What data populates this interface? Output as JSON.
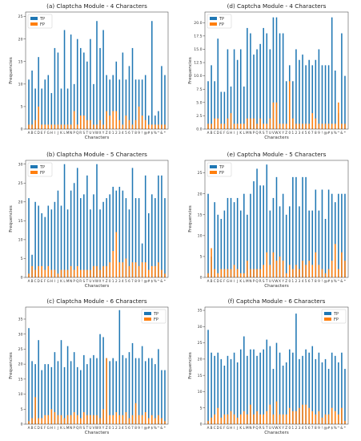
{
  "colors": {
    "tp": "#1f77b4",
    "fp": "#ff7f0e"
  },
  "chart_data": [
    {
      "type": "bar",
      "title": "(a)  Claptcha Module - 4 Characters",
      "xlabel": "Characters",
      "ylabel": "Frequencies",
      "ylim": [
        0,
        26
      ],
      "yticks": [
        0,
        5,
        10,
        15,
        20,
        25
      ],
      "legend": "top-left",
      "categories": [
        "A",
        "B",
        "C",
        "D",
        "E",
        "F",
        "G",
        "H",
        "I",
        "J",
        "K",
        "L",
        "M",
        "N",
        "P",
        "Q",
        "R",
        "S",
        "T",
        "U",
        "V",
        "W",
        "X",
        "Y",
        "Z",
        "0",
        "1",
        "2",
        "3",
        "4",
        "5",
        "6",
        "7",
        "8",
        "9",
        "!",
        "@",
        "#",
        "$",
        "%",
        "^",
        "&",
        "*"
      ],
      "series": [
        {
          "name": "TP",
          "values": [
            11,
            13,
            9,
            16,
            9,
            11,
            12,
            8,
            18,
            17,
            9,
            22,
            9,
            21,
            10,
            20,
            18,
            17,
            15,
            20,
            10,
            24,
            18,
            22,
            12,
            11,
            12,
            15,
            11,
            17,
            11,
            14,
            18,
            11,
            11,
            11,
            12,
            3,
            24,
            3,
            4,
            14,
            12
          ]
        },
        {
          "name": "FP",
          "values": [
            1,
            1,
            2,
            5,
            1,
            1,
            1,
            1,
            1,
            1,
            1,
            1,
            1,
            1,
            4,
            1,
            3,
            3,
            2,
            2,
            1,
            1,
            2,
            1,
            4,
            3,
            4,
            4,
            2,
            1,
            3,
            2,
            1,
            2,
            5,
            3,
            2,
            1,
            1,
            1,
            1,
            1,
            1
          ]
        }
      ]
    },
    {
      "type": "bar",
      "title": "(d)  Captcha Module - 4 Characters",
      "xlabel": "Characters",
      "ylabel": "Frequencies",
      "ylim": [
        0,
        22
      ],
      "yticks": [
        0.0,
        2.5,
        5.0,
        7.5,
        10.0,
        12.5,
        15.0,
        17.5,
        20.0
      ],
      "legend": "top-left",
      "categories": [
        "A",
        "B",
        "C",
        "D",
        "E",
        "F",
        "G",
        "H",
        "I",
        "J",
        "K",
        "L",
        "M",
        "N",
        "P",
        "Q",
        "R",
        "S",
        "T",
        "U",
        "V",
        "W",
        "X",
        "Y",
        "Z",
        "0",
        "1",
        "2",
        "3",
        "4",
        "5",
        "6",
        "7",
        "8",
        "9",
        "!",
        "@",
        "#",
        "$",
        "%",
        "^",
        "&",
        "*"
      ],
      "series": [
        {
          "name": "TP",
          "values": [
            9,
            12,
            9,
            17,
            7,
            7,
            15,
            8,
            15,
            13,
            15,
            8,
            19,
            18,
            14,
            15,
            16,
            19,
            18,
            15,
            21,
            21,
            18,
            18,
            9,
            12,
            9,
            15,
            13,
            14,
            12,
            13,
            12,
            13,
            15,
            12,
            12,
            12,
            21,
            11,
            3,
            18,
            10
          ]
        },
        {
          "name": "FP",
          "values": [
            1,
            1,
            2,
            2,
            1,
            1,
            2,
            3,
            1,
            1,
            1,
            1,
            2,
            2,
            2,
            1,
            2,
            1,
            1,
            2,
            5,
            5,
            1,
            1,
            1,
            9,
            2,
            1,
            1,
            1,
            1,
            1,
            3,
            2,
            1,
            1,
            1,
            1,
            1,
            1,
            5,
            1,
            1
          ]
        }
      ]
    },
    {
      "type": "bar",
      "title": "(b)  Claptcha Module - 5 Characters",
      "xlabel": "Characters",
      "ylabel": "Frequencies",
      "ylim": [
        0,
        31
      ],
      "yticks": [
        0,
        5,
        10,
        15,
        20,
        25,
        30
      ],
      "legend": "top-left",
      "categories": [
        "A",
        "B",
        "C",
        "D",
        "E",
        "F",
        "G",
        "H",
        "I",
        "J",
        "K",
        "L",
        "M",
        "N",
        "P",
        "Q",
        "R",
        "S",
        "T",
        "U",
        "V",
        "W",
        "X",
        "Y",
        "Z",
        "0",
        "1",
        "2",
        "3",
        "4",
        "5",
        "6",
        "7",
        "8",
        "9",
        "!",
        "@",
        "#",
        "$",
        "%",
        "^",
        "&",
        "*"
      ],
      "series": [
        {
          "name": "TP",
          "values": [
            21,
            6,
            20,
            19,
            17,
            16,
            19,
            18,
            20,
            23,
            19,
            30,
            18,
            23,
            25,
            29,
            21,
            22,
            27,
            18,
            22,
            30,
            18,
            20,
            21,
            22,
            24,
            23,
            24,
            23,
            21,
            18,
            29,
            21,
            21,
            9,
            27,
            17,
            22,
            21,
            27,
            27,
            21
          ]
        },
        {
          "name": "FP",
          "values": [
            1,
            3,
            2,
            3,
            3,
            2,
            3,
            2,
            2,
            1,
            2,
            2,
            2,
            3,
            2,
            3,
            2,
            2,
            2,
            2,
            3,
            3,
            2,
            3,
            3,
            4,
            7,
            12,
            4,
            4,
            5,
            3,
            4,
            4,
            3,
            4,
            4,
            2,
            3,
            3,
            4,
            2,
            1
          ]
        }
      ]
    },
    {
      "type": "bar",
      "title": "(e)  Captcha Module - 5 Characters",
      "xlabel": "Characters",
      "ylabel": "Frequencies",
      "ylim": [
        0,
        28
      ],
      "yticks": [
        0,
        5,
        10,
        15,
        20,
        25
      ],
      "legend": "top-left",
      "categories": [
        "A",
        "B",
        "C",
        "D",
        "E",
        "F",
        "G",
        "H",
        "I",
        "J",
        "K",
        "L",
        "M",
        "N",
        "P",
        "Q",
        "R",
        "S",
        "T",
        "U",
        "V",
        "W",
        "X",
        "Y",
        "Z",
        "0",
        "1",
        "2",
        "3",
        "4",
        "5",
        "6",
        "7",
        "8",
        "9",
        "!",
        "@",
        "#",
        "$",
        "%",
        "^",
        "&",
        "*"
      ],
      "series": [
        {
          "name": "TP",
          "values": [
            20,
            5,
            18,
            15,
            14,
            16,
            19,
            19,
            18,
            19,
            16,
            20,
            15,
            20,
            23,
            26,
            22,
            22,
            27,
            16,
            19,
            24,
            17,
            20,
            15,
            17,
            24,
            24,
            17,
            24,
            24,
            16,
            16,
            21,
            16,
            21,
            14,
            21,
            20,
            18,
            20,
            20,
            20
          ]
        },
        {
          "name": "FP",
          "values": [
            1,
            7,
            2,
            1,
            2,
            2,
            2,
            2,
            3,
            2,
            1,
            1,
            4,
            2,
            2,
            2,
            2,
            3,
            6,
            3,
            6,
            4,
            5,
            4,
            1,
            3,
            2,
            3,
            2,
            4,
            3,
            4,
            3,
            6,
            3,
            2,
            1,
            2,
            4,
            8,
            2,
            6,
            4
          ]
        }
      ]
    },
    {
      "type": "bar",
      "title": "(c)  Claptcha Module - 6 Characters",
      "xlabel": "Characters",
      "ylabel": "Frequencies",
      "ylim": [
        0,
        39
      ],
      "yticks": [
        0,
        5,
        10,
        15,
        20,
        25,
        30,
        35
      ],
      "legend": "top-right",
      "categories": [
        "A",
        "B",
        "C",
        "D",
        "E",
        "F",
        "G",
        "H",
        "I",
        "J",
        "K",
        "L",
        "M",
        "N",
        "P",
        "Q",
        "R",
        "S",
        "T",
        "U",
        "V",
        "W",
        "X",
        "Y",
        "Z",
        "0",
        "1",
        "2",
        "3",
        "4",
        "5",
        "6",
        "7",
        "8",
        "9",
        "!",
        "@",
        "#",
        "$",
        "%",
        "^",
        "&",
        "*"
      ],
      "series": [
        {
          "name": "TP",
          "values": [
            32,
            21,
            20,
            28,
            18,
            20,
            20,
            19,
            24,
            21,
            28,
            19,
            26,
            21,
            24,
            19,
            18,
            23,
            20,
            22,
            23,
            22,
            30,
            29,
            22,
            21,
            22,
            21,
            38,
            23,
            22,
            24,
            27,
            22,
            22,
            26,
            21,
            22,
            22,
            20,
            25,
            18,
            18
          ]
        },
        {
          "name": "FP",
          "values": [
            1,
            2,
            9,
            2,
            2,
            3,
            3,
            5,
            4,
            3,
            3,
            2,
            3,
            3,
            4,
            3,
            2,
            4,
            3,
            3,
            3,
            3,
            2,
            5,
            22,
            3,
            3,
            4,
            3,
            3,
            4,
            2,
            3,
            7,
            3,
            3,
            4,
            2,
            3,
            2,
            3,
            2,
            1
          ]
        }
      ]
    },
    {
      "type": "bar",
      "title": "(f)  Captcha Module - 6 Characters",
      "xlabel": "Characters",
      "ylabel": "Frequencies",
      "ylim": [
        0,
        36
      ],
      "yticks": [
        0,
        5,
        10,
        15,
        20,
        25,
        30,
        35
      ],
      "legend": "top-right",
      "categories": [
        "A",
        "B",
        "C",
        "D",
        "E",
        "F",
        "G",
        "H",
        "I",
        "J",
        "K",
        "L",
        "M",
        "N",
        "P",
        "Q",
        "R",
        "S",
        "T",
        "U",
        "V",
        "W",
        "X",
        "Y",
        "Z",
        "0",
        "1",
        "2",
        "3",
        "4",
        "5",
        "6",
        "7",
        "8",
        "9",
        "!",
        "@",
        "#",
        "$",
        "%",
        "^",
        "&",
        "*"
      ],
      "series": [
        {
          "name": "TP",
          "values": [
            29,
            22,
            21,
            22,
            20,
            18,
            21,
            20,
            22,
            19,
            23,
            27,
            21,
            23,
            23,
            21,
            22,
            23,
            26,
            24,
            17,
            25,
            22,
            18,
            19,
            23,
            22,
            34,
            20,
            21,
            23,
            22,
            24,
            20,
            22,
            19,
            20,
            17,
            22,
            21,
            19,
            22,
            17
          ]
        },
        {
          "name": "FP",
          "values": [
            1,
            2,
            3,
            5,
            2,
            3,
            3,
            4,
            3,
            2,
            3,
            4,
            3,
            6,
            3,
            4,
            3,
            3,
            4,
            6,
            3,
            7,
            3,
            3,
            3,
            5,
            4,
            4,
            5,
            6,
            6,
            5,
            4,
            3,
            4,
            2,
            3,
            3,
            5,
            4,
            3,
            5,
            1
          ]
        }
      ]
    }
  ]
}
